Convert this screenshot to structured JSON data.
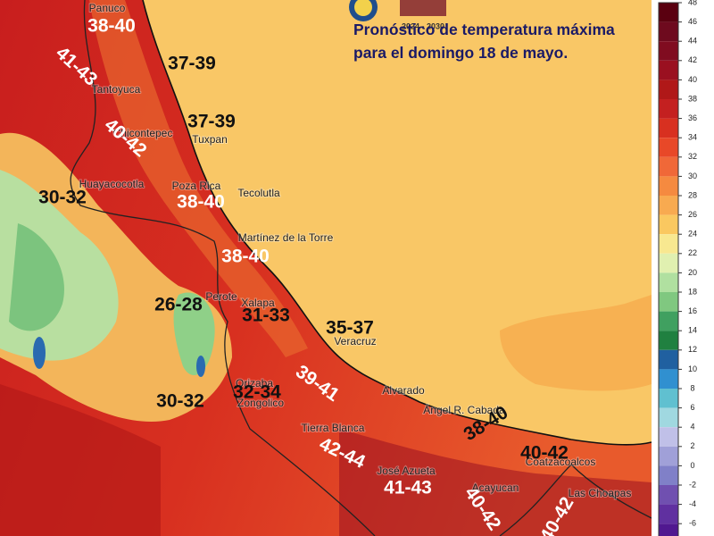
{
  "header": {
    "title": "Pronóstico de temperatura máxima para el domingo 18 de mayo.",
    "logo_text": "2024 - 2030"
  },
  "map": {
    "range_labels": [
      {
        "text": "38-40",
        "color": "#ffffff"
      },
      {
        "text": "41-43",
        "color": "#ffffff"
      },
      {
        "text": "37-39",
        "color": "#111111"
      },
      {
        "text": "40-42",
        "color": "#ffffff"
      },
      {
        "text": "37-39",
        "color": "#111111"
      },
      {
        "text": "30-32",
        "color": "#111111"
      },
      {
        "text": "38-40",
        "color": "#ffffff"
      },
      {
        "text": "38-40",
        "color": "#ffffff"
      },
      {
        "text": "26-28",
        "color": "#111111"
      },
      {
        "text": "31-33",
        "color": "#111111"
      },
      {
        "text": "35-37",
        "color": "#111111"
      },
      {
        "text": "39-41",
        "color": "#ffffff"
      },
      {
        "text": "30-32",
        "color": "#111111"
      },
      {
        "text": "32-34",
        "color": "#111111"
      },
      {
        "text": "38-40",
        "color": "#111111"
      },
      {
        "text": "42-44",
        "color": "#ffffff"
      },
      {
        "text": "40-42",
        "color": "#111111"
      },
      {
        "text": "41-43",
        "color": "#ffffff"
      },
      {
        "text": "40-42",
        "color": "#ffffff"
      },
      {
        "text": "40-42",
        "color": "#ffffff"
      }
    ],
    "cities": [
      "Panuco",
      "Tantoyuca",
      "Chicontepec",
      "Tuxpan",
      "Huayacocotla",
      "Poza Rica",
      "Tecolutla",
      "Martínez de la Torre",
      "Perote",
      "Xalapa",
      "Veracruz",
      "Orizaba",
      "Zongolico",
      "Alvarado",
      "Ángel R. Cabada",
      "Tierra Blanca",
      "José Azueta",
      "Acayucan",
      "Coatzacoalcos",
      "Las Choapas"
    ]
  },
  "colorbar": {
    "ticks": [
      48,
      46,
      44,
      42,
      40,
      38,
      36,
      34,
      32,
      30,
      28,
      26,
      24,
      22,
      20,
      18,
      16,
      14,
      12,
      10,
      8,
      6,
      4,
      2,
      0,
      -2,
      -4,
      -6
    ],
    "colors": [
      "#5a0010",
      "#6e0a1e",
      "#800c20",
      "#9a1020",
      "#b01818",
      "#c42020",
      "#d83020",
      "#e84828",
      "#f06838",
      "#f58a40",
      "#f8aa50",
      "#fac860",
      "#f8e890",
      "#e0f0b0",
      "#b0e0a0",
      "#80c880",
      "#40a060",
      "#208040",
      "#2060a0",
      "#3090d0",
      "#60c0d0",
      "#a0d8e0",
      "#c0c0e8",
      "#a0a0d8",
      "#8080c8",
      "#7050b0",
      "#6030a0",
      "#501890"
    ]
  }
}
